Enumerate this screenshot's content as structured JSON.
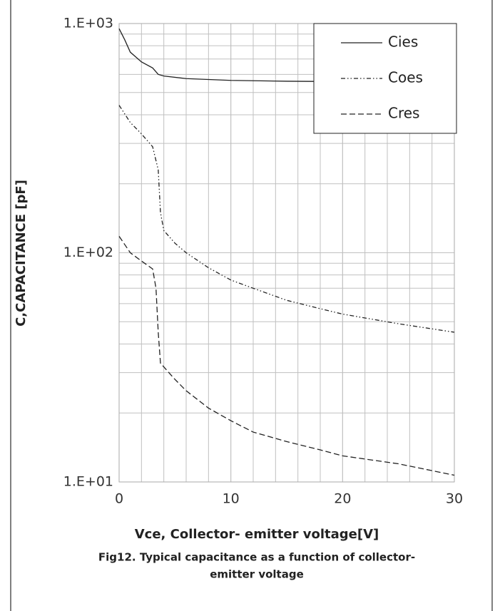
{
  "chart_data": {
    "type": "line",
    "x_label": "Vce, Collector- emitter voltage[V]",
    "y_label": "C,CAPACITANCE [pF]",
    "caption": [
      "Fig12.  Typical capacitance as a function of collector-",
      "emitter voltage"
    ],
    "xlim": [
      0,
      30
    ],
    "xticks": [
      0,
      10,
      20,
      30
    ],
    "x_minor_step": 2,
    "ylim": [
      10,
      1000
    ],
    "yticks": [
      {
        "value": 10,
        "label": "1.E+01"
      },
      {
        "value": 100,
        "label": "1.E+02"
      },
      {
        "value": 1000,
        "label": "1.E+03"
      }
    ],
    "y_log": true,
    "grid": true,
    "legend": "upper right",
    "series": [
      {
        "name": "Cies",
        "color": "#222222",
        "style": "solid",
        "x": [
          0,
          0.5,
          1,
          2,
          3,
          3.5,
          4,
          6,
          10,
          15,
          20,
          30
        ],
        "values": [
          950,
          850,
          750,
          680,
          640,
          600,
          590,
          575,
          565,
          560,
          558,
          555
        ]
      },
      {
        "name": "Coes",
        "color": "#222222",
        "style": "dashdotdot",
        "x": [
          0,
          1,
          2,
          3,
          3.5,
          3.7,
          4,
          5,
          6,
          8,
          10,
          12,
          15,
          18,
          20,
          25,
          30
        ],
        "values": [
          440,
          370,
          330,
          290,
          230,
          150,
          125,
          110,
          100,
          86,
          76,
          70,
          62,
          57,
          54,
          49,
          45
        ]
      },
      {
        "name": "Cres",
        "color": "#222222",
        "style": "dashed",
        "x": [
          0,
          1,
          2,
          3,
          3.3,
          3.5,
          3.7,
          5,
          6,
          8,
          10,
          12,
          15,
          18,
          20,
          25,
          30
        ],
        "values": [
          118,
          100,
          92,
          85,
          70,
          45,
          33,
          28,
          25,
          21,
          18.5,
          16.5,
          15,
          13.8,
          13,
          12,
          10.7
        ]
      }
    ]
  }
}
